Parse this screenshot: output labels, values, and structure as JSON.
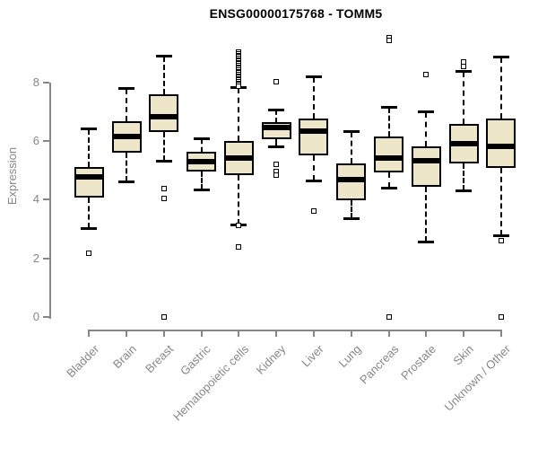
{
  "title": "ENSG00000175768 - TOMM5",
  "chart_data": {
    "type": "boxplot",
    "title": "ENSG00000175768 - TOMM5",
    "xlabel": "",
    "ylabel": "Expression",
    "ylim": [
      0,
      9.6
    ],
    "yticks": [
      0,
      2,
      4,
      6,
      8
    ],
    "grid": false,
    "legend": "none",
    "categories": [
      "Bladder",
      "Brain",
      "Breast",
      "Gastric",
      "Hematopoietic cells",
      "Kidney",
      "Liver",
      "Lung",
      "Pancreas",
      "Prostate",
      "Skin",
      "Unknown / Other"
    ],
    "series": [
      {
        "name": "Bladder",
        "whisker_low": 3.03,
        "q1": 4.07,
        "median": 4.78,
        "q3": 5.1,
        "whisker_high": 6.4,
        "outliers": [
          2.18
        ]
      },
      {
        "name": "Brain",
        "whisker_low": 4.62,
        "q1": 5.6,
        "median": 6.15,
        "q3": 6.66,
        "whisker_high": 7.79,
        "outliers": []
      },
      {
        "name": "Breast",
        "whisker_low": 5.32,
        "q1": 6.32,
        "median": 6.82,
        "q3": 7.59,
        "whisker_high": 8.87,
        "outliers": [
          4.38,
          4.05,
          0
        ]
      },
      {
        "name": "Gastric",
        "whisker_low": 4.35,
        "q1": 4.97,
        "median": 5.29,
        "q3": 5.64,
        "whisker_high": 6.07,
        "outliers": []
      },
      {
        "name": "Hematopoietic cells",
        "whisker_low": 3.15,
        "q1": 4.84,
        "median": 5.43,
        "q3": 5.99,
        "whisker_high": 7.8,
        "outliers": [
          9.02,
          8.97,
          8.92,
          8.87,
          8.82,
          8.77,
          8.72,
          8.67,
          8.62,
          8.57,
          8.52,
          8.47,
          8.42,
          8.37,
          8.32,
          8.27,
          8.22,
          8.17,
          8.12,
          8.07,
          8.02,
          7.97,
          7.92,
          7.87,
          3.12,
          2.39
        ]
      },
      {
        "name": "Kidney",
        "whisker_low": 5.81,
        "q1": 6.06,
        "median": 6.47,
        "q3": 6.63,
        "whisker_high": 7.03,
        "outliers": [
          8.03,
          5.19,
          4.96,
          4.84
        ]
      },
      {
        "name": "Liver",
        "whisker_low": 4.65,
        "q1": 5.5,
        "median": 6.35,
        "q3": 6.78,
        "whisker_high": 8.16,
        "outliers": [
          3.61
        ]
      },
      {
        "name": "Lung",
        "whisker_low": 3.36,
        "q1": 3.97,
        "median": 4.68,
        "q3": 5.23,
        "whisker_high": 6.32,
        "outliers": []
      },
      {
        "name": "Pancreas",
        "whisker_low": 4.4,
        "q1": 4.94,
        "median": 5.41,
        "q3": 6.16,
        "whisker_high": 7.13,
        "outliers": [
          9.53,
          9.42,
          0
        ]
      },
      {
        "name": "Prostate",
        "whisker_low": 2.56,
        "q1": 4.45,
        "median": 5.33,
        "q3": 5.83,
        "whisker_high": 6.98,
        "outliers": [
          8.26
        ]
      },
      {
        "name": "Skin",
        "whisker_low": 4.33,
        "q1": 5.25,
        "median": 5.9,
        "q3": 6.57,
        "whisker_high": 8.36,
        "outliers": [
          8.7,
          8.55
        ]
      },
      {
        "name": "Unknown / Other",
        "whisker_low": 2.8,
        "q1": 5.09,
        "median": 5.81,
        "q3": 6.78,
        "whisker_high": 8.85,
        "outliers": [
          2.59,
          0
        ]
      }
    ],
    "colors": {
      "box_fill": "#EDE6C8",
      "box_border": "#000000",
      "median": "#000000",
      "whisker": "#000000",
      "axis": "#878787",
      "title": "#000000",
      "background": "#ffffff"
    }
  }
}
